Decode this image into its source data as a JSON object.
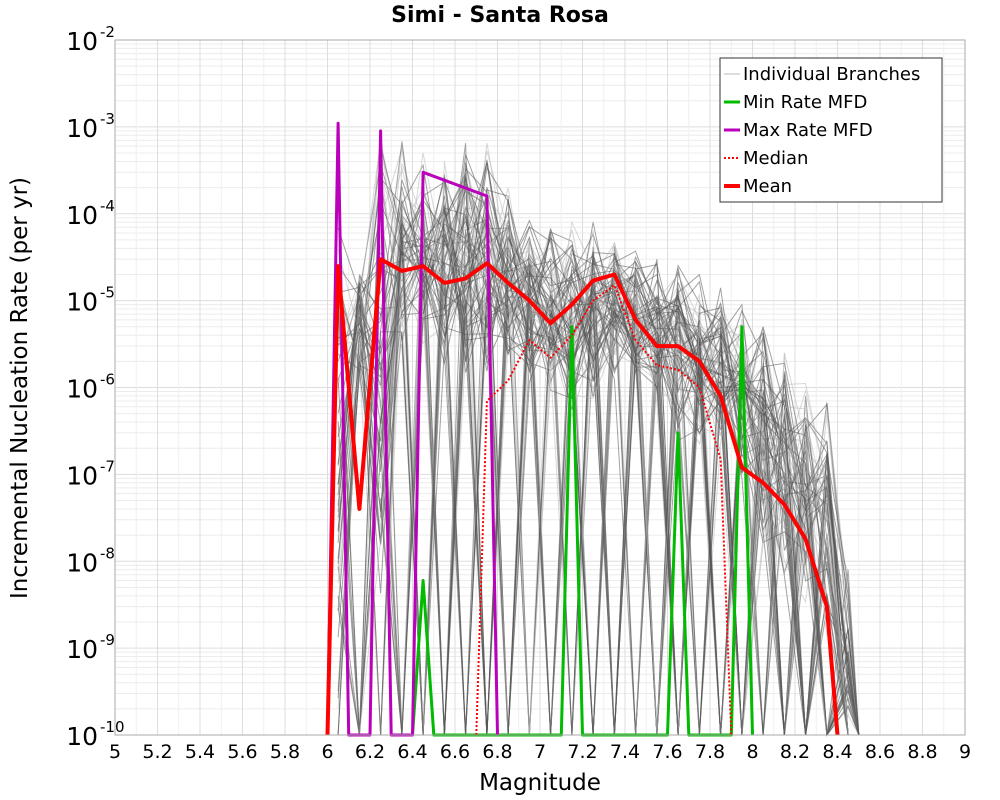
{
  "chart_data": {
    "type": "line",
    "title": "Simi - Santa Rosa",
    "xlabel": "Magnitude",
    "ylabel": "Incremental Nucleation Rate (per yr)",
    "xlim": [
      5,
      9
    ],
    "ylim": [
      1e-10,
      0.01
    ],
    "yscale": "log",
    "grid": true,
    "legend_position": "top-right",
    "x_ticks": [
      "5",
      "5.2",
      "5.4",
      "5.6",
      "5.8",
      "6",
      "6.2",
      "6.4",
      "6.6",
      "6.8",
      "7",
      "7.2",
      "7.4",
      "7.6",
      "7.8",
      "8",
      "8.2",
      "8.4",
      "8.6",
      "8.8",
      "9"
    ],
    "y_ticks": [
      {
        "base": "10",
        "exp": "-10",
        "value": 1e-10
      },
      {
        "base": "10",
        "exp": "-9",
        "value": 1e-09
      },
      {
        "base": "10",
        "exp": "-8",
        "value": 1e-08
      },
      {
        "base": "10",
        "exp": "-7",
        "value": 1e-07
      },
      {
        "base": "10",
        "exp": "-6",
        "value": 1e-06
      },
      {
        "base": "10",
        "exp": "-5",
        "value": 1e-05
      },
      {
        "base": "10",
        "exp": "-4",
        "value": 0.0001
      },
      {
        "base": "10",
        "exp": "-3",
        "value": 0.001
      },
      {
        "base": "10",
        "exp": "-2",
        "value": 0.01
      }
    ],
    "series": [
      {
        "name": "Individual Branches",
        "color": "#4d4d4d",
        "style": "solid",
        "envelope_top": [
          [
            6.05,
            0.0001
          ],
          [
            6.15,
            2e-05
          ],
          [
            6.25,
            0.0008
          ],
          [
            6.35,
            0.0007
          ],
          [
            6.45,
            0.0005
          ],
          [
            6.55,
            0.0005
          ],
          [
            6.65,
            0.0007
          ],
          [
            6.75,
            0.0007
          ],
          [
            6.85,
            0.0002
          ],
          [
            6.95,
            9e-05
          ],
          [
            7.05,
            8e-05
          ],
          [
            7.15,
            8e-05
          ],
          [
            7.25,
            9e-05
          ],
          [
            7.35,
            6e-05
          ],
          [
            7.45,
            4e-05
          ],
          [
            7.55,
            3e-05
          ],
          [
            7.65,
            3e-05
          ],
          [
            7.75,
            2e-05
          ],
          [
            7.85,
            1.5e-05
          ],
          [
            7.95,
            1e-05
          ],
          [
            8.05,
            5e-06
          ],
          [
            8.15,
            3e-06
          ],
          [
            8.25,
            2e-06
          ],
          [
            8.35,
            1e-06
          ],
          [
            8.45,
            8e-09
          ]
        ]
      },
      {
        "name": "Min Rate MFD",
        "color": "#00bb00",
        "style": "solid",
        "points": [
          [
            6.4,
            1e-10
          ],
          [
            6.45,
            6e-09
          ],
          [
            6.5,
            1e-10
          ],
          [
            7.1,
            1e-10
          ],
          [
            7.15,
            5e-06
          ],
          [
            7.2,
            1e-10
          ],
          [
            7.6,
            1e-10
          ],
          [
            7.65,
            3e-07
          ],
          [
            7.7,
            1e-10
          ],
          [
            7.9,
            1e-10
          ],
          [
            7.95,
            5e-06
          ],
          [
            8.0,
            1e-10
          ]
        ]
      },
      {
        "name": "Max Rate MFD",
        "color": "#bb00bb",
        "style": "solid",
        "points": [
          [
            6.0,
            1e-10
          ],
          [
            6.05,
            0.0011
          ],
          [
            6.1,
            1e-10
          ],
          [
            6.2,
            1e-10
          ],
          [
            6.25,
            0.0009
          ],
          [
            6.3,
            1e-10
          ],
          [
            6.4,
            1e-10
          ],
          [
            6.45,
            0.0003
          ],
          [
            6.75,
            0.00016
          ],
          [
            6.8,
            1e-10
          ]
        ]
      },
      {
        "name": "Median",
        "color": "#ff0000",
        "style": "dotted",
        "points": [
          [
            6.7,
            1e-10
          ],
          [
            6.75,
            7e-07
          ],
          [
            6.85,
            1.2e-06
          ],
          [
            6.95,
            3.5e-06
          ],
          [
            7.05,
            2.2e-06
          ],
          [
            7.15,
            4e-06
          ],
          [
            7.25,
            1e-05
          ],
          [
            7.35,
            1.5e-05
          ],
          [
            7.45,
            3.5e-06
          ],
          [
            7.55,
            1.8e-06
          ],
          [
            7.65,
            1.6e-06
          ],
          [
            7.75,
            1e-06
          ],
          [
            7.85,
            1.5e-07
          ],
          [
            7.9,
            1e-10
          ]
        ]
      },
      {
        "name": "Mean",
        "color": "#ff0000",
        "style": "solid",
        "points": [
          [
            6.0,
            1e-10
          ],
          [
            6.05,
            2.5e-05
          ],
          [
            6.15,
            4e-08
          ],
          [
            6.25,
            3e-05
          ],
          [
            6.35,
            2.2e-05
          ],
          [
            6.45,
            2.5e-05
          ],
          [
            6.55,
            1.6e-05
          ],
          [
            6.65,
            1.8e-05
          ],
          [
            6.75,
            2.7e-05
          ],
          [
            6.85,
            1.6e-05
          ],
          [
            6.95,
            1e-05
          ],
          [
            7.05,
            5.5e-06
          ],
          [
            7.15,
            9e-06
          ],
          [
            7.25,
            1.7e-05
          ],
          [
            7.35,
            2e-05
          ],
          [
            7.45,
            6e-06
          ],
          [
            7.55,
            3e-06
          ],
          [
            7.65,
            3e-06
          ],
          [
            7.75,
            2e-06
          ],
          [
            7.85,
            8e-07
          ],
          [
            7.95,
            1.2e-07
          ],
          [
            8.05,
            8e-08
          ],
          [
            8.15,
            4.5e-08
          ],
          [
            8.25,
            1.8e-08
          ],
          [
            8.35,
            3e-09
          ],
          [
            8.4,
            1e-10
          ]
        ]
      }
    ]
  }
}
